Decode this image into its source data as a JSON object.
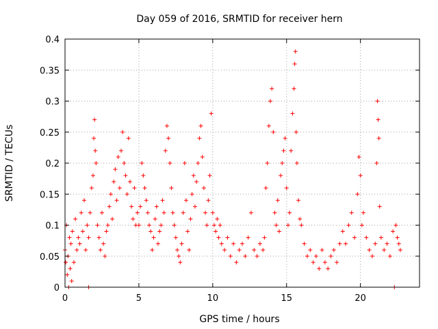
{
  "chart_data": {
    "type": "scatter",
    "title": "Day 059 of 2016, SRMTID for receiver hern",
    "xlabel": "GPS time / hours",
    "ylabel": "SRMTID / TECUs",
    "xlim": [
      0,
      24
    ],
    "ylim": [
      0,
      0.4
    ],
    "x_ticks": [
      0,
      5,
      10,
      15,
      20
    ],
    "x_tick_labels": [
      "0",
      "5",
      "10",
      "15",
      "20"
    ],
    "y_ticks": [
      0,
      0.05,
      0.1,
      0.15,
      0.2,
      0.25,
      0.3,
      0.35,
      0.4
    ],
    "y_tick_labels": [
      "0",
      "0.05",
      "0.1",
      "0.15",
      "0.2",
      "0.25",
      "0.3",
      "0.35",
      "0.4"
    ],
    "grid": true,
    "marker": "+",
    "series": [
      {
        "name": "SRMTID",
        "color": "#ff0000",
        "points": [
          [
            0.0,
            0.06
          ],
          [
            0.05,
            0.04
          ],
          [
            0.1,
            0.1
          ],
          [
            0.15,
            0.02
          ],
          [
            0.2,
            0.05
          ],
          [
            0.25,
            0.0
          ],
          [
            0.3,
            0.08
          ],
          [
            0.35,
            0.03
          ],
          [
            0.4,
            0.07
          ],
          [
            0.45,
            0.01
          ],
          [
            0.5,
            0.09
          ],
          [
            0.6,
            0.04
          ],
          [
            0.7,
            0.11
          ],
          [
            0.8,
            0.06
          ],
          [
            0.9,
            0.08
          ],
          [
            1.0,
            0.07
          ],
          [
            1.1,
            0.12
          ],
          [
            1.2,
            0.09
          ],
          [
            1.3,
            0.14
          ],
          [
            1.4,
            0.06
          ],
          [
            1.5,
            0.1
          ],
          [
            1.6,
            0.08
          ],
          [
            1.6,
            0.0
          ],
          [
            1.7,
            0.12
          ],
          [
            1.8,
            0.16
          ],
          [
            1.9,
            0.18
          ],
          [
            1.95,
            0.24
          ],
          [
            2.0,
            0.27
          ],
          [
            2.05,
            0.22
          ],
          [
            2.1,
            0.2
          ],
          [
            2.2,
            0.1
          ],
          [
            2.3,
            0.08
          ],
          [
            2.4,
            0.06
          ],
          [
            2.5,
            0.12
          ],
          [
            2.6,
            0.07
          ],
          [
            2.7,
            0.05
          ],
          [
            2.8,
            0.09
          ],
          [
            2.9,
            0.1
          ],
          [
            3.0,
            0.13
          ],
          [
            3.1,
            0.15
          ],
          [
            3.2,
            0.11
          ],
          [
            3.3,
            0.17
          ],
          [
            3.4,
            0.19
          ],
          [
            3.5,
            0.14
          ],
          [
            3.6,
            0.21
          ],
          [
            3.7,
            0.16
          ],
          [
            3.8,
            0.22
          ],
          [
            3.9,
            0.25
          ],
          [
            4.0,
            0.2
          ],
          [
            4.1,
            0.18
          ],
          [
            4.2,
            0.15
          ],
          [
            4.3,
            0.24
          ],
          [
            4.4,
            0.17
          ],
          [
            4.5,
            0.13
          ],
          [
            4.6,
            0.11
          ],
          [
            4.7,
            0.16
          ],
          [
            4.8,
            0.1
          ],
          [
            4.9,
            0.12
          ],
          [
            5.0,
            0.1
          ],
          [
            5.1,
            0.13
          ],
          [
            5.2,
            0.2
          ],
          [
            5.3,
            0.18
          ],
          [
            5.4,
            0.16
          ],
          [
            5.5,
            0.14
          ],
          [
            5.6,
            0.12
          ],
          [
            5.7,
            0.1
          ],
          [
            5.8,
            0.09
          ],
          [
            5.9,
            0.06
          ],
          [
            6.0,
            0.08
          ],
          [
            6.1,
            0.11
          ],
          [
            6.2,
            0.13
          ],
          [
            6.3,
            0.07
          ],
          [
            6.4,
            0.09
          ],
          [
            6.5,
            0.1
          ],
          [
            6.6,
            0.14
          ],
          [
            6.7,
            0.12
          ],
          [
            6.8,
            0.22
          ],
          [
            6.9,
            0.26
          ],
          [
            7.0,
            0.24
          ],
          [
            7.1,
            0.2
          ],
          [
            7.2,
            0.16
          ],
          [
            7.3,
            0.12
          ],
          [
            7.4,
            0.1
          ],
          [
            7.5,
            0.08
          ],
          [
            7.6,
            0.06
          ],
          [
            7.7,
            0.05
          ],
          [
            7.8,
            0.04
          ],
          [
            7.9,
            0.07
          ],
          [
            8.0,
            0.12
          ],
          [
            8.1,
            0.2
          ],
          [
            8.2,
            0.14
          ],
          [
            8.3,
            0.09
          ],
          [
            8.4,
            0.06
          ],
          [
            8.5,
            0.11
          ],
          [
            8.6,
            0.15
          ],
          [
            8.7,
            0.18
          ],
          [
            8.8,
            0.13
          ],
          [
            8.9,
            0.17
          ],
          [
            9.0,
            0.2
          ],
          [
            9.1,
            0.24
          ],
          [
            9.2,
            0.26
          ],
          [
            9.3,
            0.21
          ],
          [
            9.4,
            0.16
          ],
          [
            9.5,
            0.12
          ],
          [
            9.6,
            0.1
          ],
          [
            9.7,
            0.14
          ],
          [
            9.8,
            0.18
          ],
          [
            9.9,
            0.28
          ],
          [
            10.0,
            0.12
          ],
          [
            10.1,
            0.1
          ],
          [
            10.2,
            0.09
          ],
          [
            10.3,
            0.11
          ],
          [
            10.4,
            0.08
          ],
          [
            10.5,
            0.1
          ],
          [
            10.6,
            0.07
          ],
          [
            10.8,
            0.06
          ],
          [
            11.0,
            0.08
          ],
          [
            11.2,
            0.05
          ],
          [
            11.4,
            0.07
          ],
          [
            11.6,
            0.04
          ],
          [
            11.8,
            0.06
          ],
          [
            12.0,
            0.07
          ],
          [
            12.2,
            0.05
          ],
          [
            12.4,
            0.08
          ],
          [
            12.6,
            0.12
          ],
          [
            12.8,
            0.06
          ],
          [
            13.0,
            0.05
          ],
          [
            13.2,
            0.07
          ],
          [
            13.4,
            0.06
          ],
          [
            13.5,
            0.08
          ],
          [
            13.6,
            0.16
          ],
          [
            13.7,
            0.2
          ],
          [
            13.8,
            0.26
          ],
          [
            13.9,
            0.3
          ],
          [
            14.0,
            0.32
          ],
          [
            14.1,
            0.25
          ],
          [
            14.2,
            0.12
          ],
          [
            14.3,
            0.1
          ],
          [
            14.4,
            0.14
          ],
          [
            14.5,
            0.09
          ],
          [
            14.6,
            0.18
          ],
          [
            14.7,
            0.2
          ],
          [
            14.8,
            0.22
          ],
          [
            14.9,
            0.24
          ],
          [
            15.0,
            0.16
          ],
          [
            15.1,
            0.1
          ],
          [
            15.2,
            0.12
          ],
          [
            15.3,
            0.22
          ],
          [
            15.4,
            0.28
          ],
          [
            15.5,
            0.32
          ],
          [
            15.55,
            0.36
          ],
          [
            15.6,
            0.38
          ],
          [
            15.65,
            0.25
          ],
          [
            15.7,
            0.2
          ],
          [
            15.8,
            0.14
          ],
          [
            15.9,
            0.11
          ],
          [
            16.0,
            0.1
          ],
          [
            16.2,
            0.07
          ],
          [
            16.4,
            0.05
          ],
          [
            16.6,
            0.06
          ],
          [
            16.8,
            0.04
          ],
          [
            17.0,
            0.05
          ],
          [
            17.2,
            0.03
          ],
          [
            17.4,
            0.06
          ],
          [
            17.6,
            0.04
          ],
          [
            17.8,
            0.03
          ],
          [
            18.0,
            0.05
          ],
          [
            18.2,
            0.06
          ],
          [
            18.4,
            0.04
          ],
          [
            18.6,
            0.07
          ],
          [
            18.8,
            0.09
          ],
          [
            19.0,
            0.07
          ],
          [
            19.2,
            0.1
          ],
          [
            19.4,
            0.12
          ],
          [
            19.6,
            0.08
          ],
          [
            19.8,
            0.15
          ],
          [
            19.9,
            0.21
          ],
          [
            20.0,
            0.18
          ],
          [
            20.1,
            0.1
          ],
          [
            20.2,
            0.12
          ],
          [
            20.4,
            0.08
          ],
          [
            20.6,
            0.06
          ],
          [
            20.8,
            0.05
          ],
          [
            21.0,
            0.07
          ],
          [
            21.1,
            0.2
          ],
          [
            21.15,
            0.3
          ],
          [
            21.2,
            0.27
          ],
          [
            21.25,
            0.24
          ],
          [
            21.3,
            0.13
          ],
          [
            21.4,
            0.08
          ],
          [
            21.6,
            0.06
          ],
          [
            21.8,
            0.07
          ],
          [
            22.0,
            0.05
          ],
          [
            22.2,
            0.09
          ],
          [
            22.3,
            0.0
          ],
          [
            22.4,
            0.1
          ],
          [
            22.5,
            0.08
          ],
          [
            22.6,
            0.07
          ],
          [
            22.7,
            0.06
          ]
        ]
      }
    ]
  }
}
